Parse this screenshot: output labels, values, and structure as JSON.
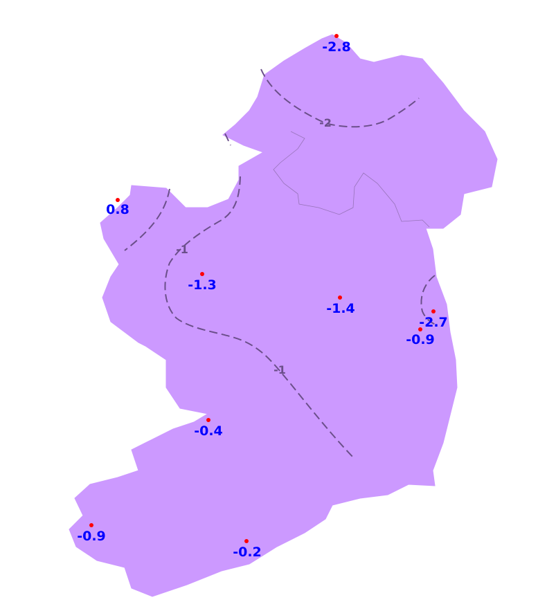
{
  "map": {
    "colors": {
      "land": "#cc99ff",
      "contour": "#6b4f8a",
      "station_label": "#0000ff",
      "station_marker": "#ff0000"
    },
    "contour_labels": [
      {
        "id": "c-minus2",
        "text": "-2"
      },
      {
        "id": "c-minus1-west",
        "text": "-1"
      },
      {
        "id": "c-minus1-central",
        "text": "-1"
      }
    ],
    "stations": [
      {
        "value": "-2.8"
      },
      {
        "value": "0.8"
      },
      {
        "value": "-1.3"
      },
      {
        "value": "-1.4"
      },
      {
        "value": "-2.7"
      },
      {
        "value": "-0.9"
      },
      {
        "value": "-0.4"
      },
      {
        "value": "-0.9"
      },
      {
        "value": "-0.2"
      }
    ]
  }
}
